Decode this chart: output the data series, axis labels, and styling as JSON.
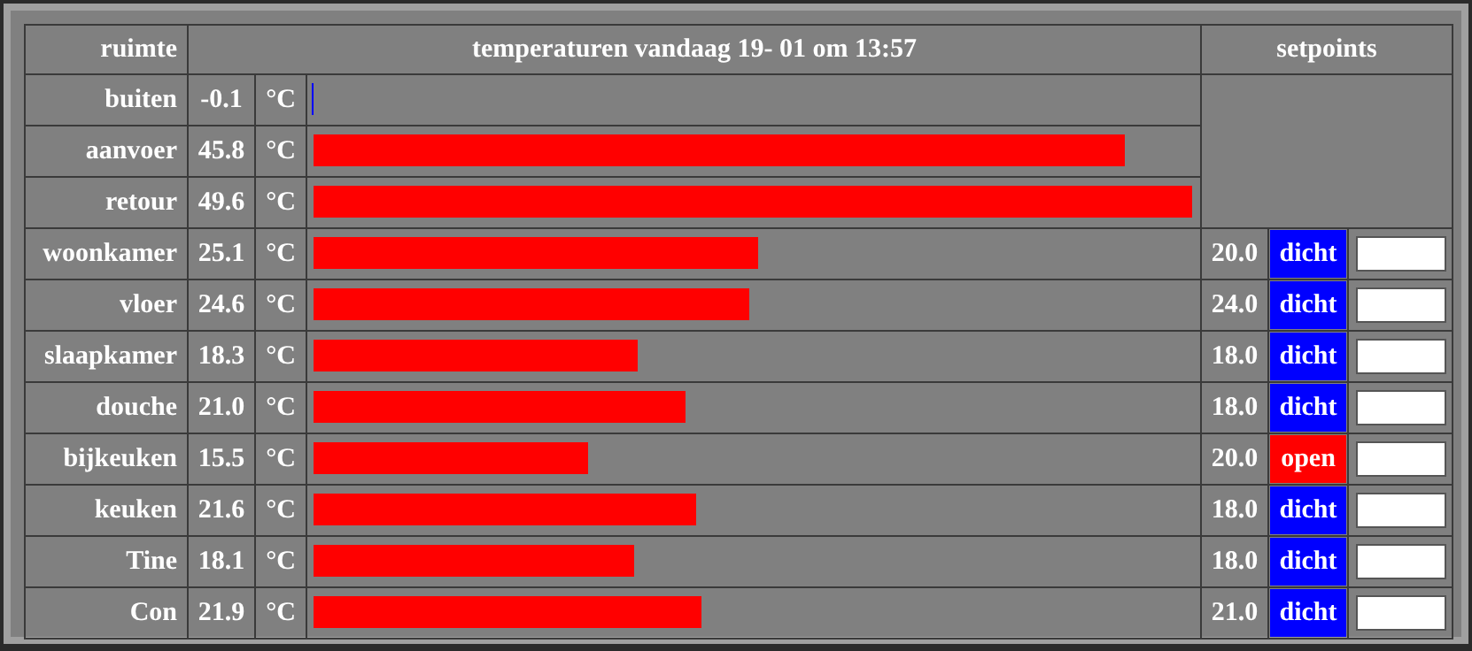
{
  "chart_data": {
    "type": "bar",
    "orientation": "horizontal",
    "title": "temperaturen vandaag 19- 01 om 13:57",
    "ylabel": "ruimte",
    "categories": [
      "buiten",
      "aanvoer",
      "retour",
      "woonkamer",
      "vloer",
      "slaapkamer",
      "douche",
      "bijkeuken",
      "keuken",
      "Tine",
      "Con"
    ],
    "values": [
      -0.1,
      45.8,
      49.6,
      25.1,
      24.6,
      18.3,
      21.0,
      15.5,
      21.6,
      18.1,
      21.9
    ],
    "value_labels": [
      "-0.1",
      "45.8",
      "49.6",
      "25.1",
      "24.6",
      "18.3",
      "21.0",
      "15.5",
      "21.6",
      "18.1",
      "21.9"
    ],
    "colors": [
      "#0000ff",
      "#ff0000",
      "#ff0000",
      "#ff0000",
      "#ff0000",
      "#ff0000",
      "#ff0000",
      "#ff0000",
      "#ff0000",
      "#ff0000",
      "#ff0000"
    ],
    "xlim": [
      -0.4,
      50
    ],
    "tick_labels": "y",
    "annotations": [
      "setpoints",
      "°C",
      "°C",
      "°C",
      "°C",
      "°C",
      "°C",
      "°C",
      "°C",
      "°C",
      "°C",
      "°C",
      "20.0",
      "24.0",
      "18.0",
      "18.0",
      "20.0",
      "18.0",
      "18.0",
      "21.0",
      "dicht",
      "dicht",
      "dicht",
      "dicht",
      "open",
      "dicht",
      "dicht",
      "dicht"
    ]
  }
}
